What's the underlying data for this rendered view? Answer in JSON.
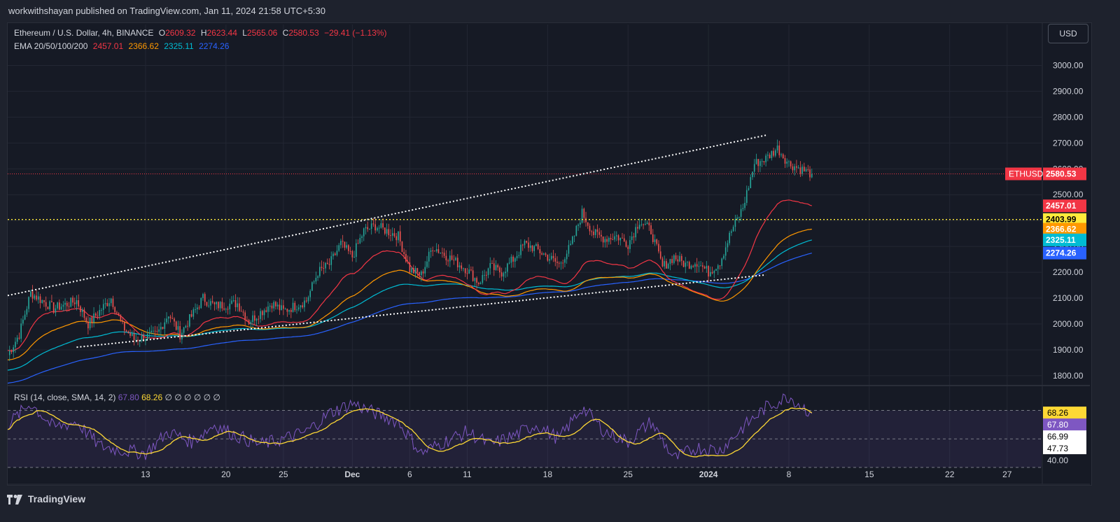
{
  "header": {
    "publish_line": "workwithshayan published on TradingView.com, Jan 11, 2024 21:58 UTC+5:30"
  },
  "legend": {
    "symbol": "Ethereum / U.S. Dollar, 4h, BINANCE",
    "open_label": "O",
    "open": "2609.32",
    "high_label": "H",
    "high": "2623.44",
    "low_label": "L",
    "low": "2565.06",
    "close_label": "C",
    "close": "2580.53",
    "change": "−29.41 (−1.13%)",
    "ema_label": "EMA 20/50/100/200",
    "ema20": "2457.01",
    "ema50": "2366.62",
    "ema100": "2325.11",
    "ema200": "2274.26"
  },
  "currency_button": "USD",
  "rsi_legend": {
    "label": "RSI (14, close, SMA, 14, 2)",
    "rsi": "67.80",
    "sma": "68.26",
    "extras": "∅ ∅ ∅ ∅ ∅ ∅"
  },
  "footer": {
    "brand": "TradingView"
  },
  "colors": {
    "background": "#161a25",
    "grid": "#232733",
    "text": "#d1d4dc",
    "up": "#26a69a",
    "down": "#ef5350",
    "ema20": "#f23645",
    "ema50": "#ff9800",
    "ema100": "#00bcd4",
    "ema200": "#2962ff",
    "rsi": "#7e57c2",
    "rsi_sma": "#fdd835",
    "level_line": "#ffeb3b",
    "price_line": "#f23645"
  },
  "chart_data": [
    {
      "type": "candlestick",
      "title": "Ethereum / U.S. Dollar, 4h, BINANCE",
      "y_axis_side": "right",
      "ylim": [
        1770,
        3050
      ],
      "y_ticks": [
        1800,
        1900,
        2000,
        2100,
        2200,
        2300,
        2400,
        2500,
        2600,
        2700,
        2800,
        2900,
        3000
      ],
      "y_tick_labels": [
        "1800.00",
        "1900.00",
        "2000.00",
        "2100.00",
        "2200.00",
        "2300.00",
        "2400.00",
        "2500.00",
        "2600.00",
        "2700.00",
        "2800.00",
        "2900.00",
        "3000.00"
      ],
      "x_tick_labels": [
        "13",
        "20",
        "25",
        "Dec",
        "6",
        "11",
        "18",
        "25",
        "2024",
        "8",
        "15",
        "22",
        "27"
      ],
      "x_tick_days": [
        12,
        19,
        24,
        30,
        35,
        40,
        47,
        54,
        61,
        68,
        75,
        82,
        87
      ],
      "x_range_days": [
        0,
        90
      ],
      "last_bar_day": 70,
      "ohlc_keypoints": [
        {
          "day": 0,
          "close": 1880
        },
        {
          "day": 1,
          "close": 1960
        },
        {
          "day": 2,
          "close": 2120
        },
        {
          "day": 4,
          "close": 2060
        },
        {
          "day": 6,
          "close": 2090
        },
        {
          "day": 7,
          "close": 2000
        },
        {
          "day": 9,
          "close": 2100
        },
        {
          "day": 10,
          "close": 1990
        },
        {
          "day": 11,
          "close": 1940
        },
        {
          "day": 13,
          "close": 1960
        },
        {
          "day": 14,
          "close": 2040
        },
        {
          "day": 15,
          "close": 1960
        },
        {
          "day": 17,
          "close": 2100
        },
        {
          "day": 18,
          "close": 2070
        },
        {
          "day": 20,
          "close": 2080
        },
        {
          "day": 21,
          "close": 2010
        },
        {
          "day": 23,
          "close": 2080
        },
        {
          "day": 24,
          "close": 2050
        },
        {
          "day": 26,
          "close": 2090
        },
        {
          "day": 27,
          "close": 2200
        },
        {
          "day": 28,
          "close": 2230
        },
        {
          "day": 29,
          "close": 2310
        },
        {
          "day": 30,
          "close": 2260
        },
        {
          "day": 31,
          "close": 2360
        },
        {
          "day": 32,
          "close": 2380
        },
        {
          "day": 33,
          "close": 2360
        },
        {
          "day": 34,
          "close": 2340
        },
        {
          "day": 35,
          "close": 2210
        },
        {
          "day": 36,
          "close": 2190
        },
        {
          "day": 37,
          "close": 2300
        },
        {
          "day": 38,
          "close": 2270
        },
        {
          "day": 39,
          "close": 2240
        },
        {
          "day": 40,
          "close": 2210
        },
        {
          "day": 41,
          "close": 2160
        },
        {
          "day": 42,
          "close": 2220
        },
        {
          "day": 43,
          "close": 2200
        },
        {
          "day": 44,
          "close": 2250
        },
        {
          "day": 45,
          "close": 2310
        },
        {
          "day": 46,
          "close": 2290
        },
        {
          "day": 47,
          "close": 2260
        },
        {
          "day": 48,
          "close": 2230
        },
        {
          "day": 49,
          "close": 2300
        },
        {
          "day": 50,
          "close": 2430
        },
        {
          "day": 51,
          "close": 2350
        },
        {
          "day": 52,
          "close": 2330
        },
        {
          "day": 53,
          "close": 2340
        },
        {
          "day": 54,
          "close": 2310
        },
        {
          "day": 55,
          "close": 2400
        },
        {
          "day": 56,
          "close": 2360
        },
        {
          "day": 57,
          "close": 2220
        },
        {
          "day": 58,
          "close": 2260
        },
        {
          "day": 59,
          "close": 2230
        },
        {
          "day": 60,
          "close": 2240
        },
        {
          "day": 61,
          "close": 2200
        },
        {
          "day": 62,
          "close": 2240
        },
        {
          "day": 63,
          "close": 2360
        },
        {
          "day": 64,
          "close": 2450
        },
        {
          "day": 65,
          "close": 2620
        },
        {
          "day": 66,
          "close": 2640
        },
        {
          "day": 67,
          "close": 2680
        },
        {
          "day": 68,
          "close": 2620
        },
        {
          "day": 69,
          "close": 2600
        },
        {
          "day": 70,
          "close": 2580.53
        }
      ],
      "ema_last": {
        "ema20": 2457.01,
        "ema50": 2366.62,
        "ema100": 2325.11,
        "ema200": 2274.26
      },
      "ema_start": {
        "ema20": 1900,
        "ema50": 1860,
        "ema100": 1820,
        "ema200": 1770
      },
      "horizontal_level": 2403.99,
      "current_price": 2580.53,
      "trendlines": [
        {
          "style": "dotted",
          "from": {
            "day": 0,
            "price": 2110
          },
          "to": {
            "day": 66,
            "price": 2730
          }
        },
        {
          "style": "dotted",
          "from": {
            "day": 6,
            "price": 1910
          },
          "to": {
            "day": 66,
            "price": 2190
          }
        }
      ],
      "price_labels": [
        {
          "text": "ETHUSD",
          "value": "2580.53",
          "price": 2580.53,
          "color": "#f23645"
        },
        {
          "text": "",
          "value": "2457.01",
          "price": 2457.01,
          "color": "#f23645"
        },
        {
          "text": "",
          "value": "2403.99",
          "price": 2403.99,
          "color": "#ffeb3b"
        },
        {
          "text": "",
          "value": "2366.62",
          "price": 2366.62,
          "color": "#ff9800"
        },
        {
          "text": "",
          "value": "2325.11",
          "price": 2325.11,
          "color": "#00bcd4"
        },
        {
          "text": "",
          "value": "2274.26",
          "price": 2274.26,
          "color": "#2962ff"
        }
      ]
    },
    {
      "type": "line",
      "title": "RSI (14, close, SMA, 14, 2)",
      "ylim": [
        30,
        85
      ],
      "band": [
        30,
        70
      ],
      "levels": [
        30,
        50,
        70
      ],
      "y_tick_labels_visible": [
        "40.00"
      ],
      "series": [
        {
          "name": "RSI",
          "color": "#7e57c2",
          "last": 67.8
        },
        {
          "name": "SMA",
          "color": "#fdd835",
          "last": 68.26
        }
      ],
      "rsi_keypoints": [
        {
          "day": 0,
          "value": 60
        },
        {
          "day": 2,
          "value": 75
        },
        {
          "day": 4,
          "value": 58
        },
        {
          "day": 6,
          "value": 62
        },
        {
          "day": 8,
          "value": 45
        },
        {
          "day": 10,
          "value": 42
        },
        {
          "day": 12,
          "value": 40
        },
        {
          "day": 14,
          "value": 55
        },
        {
          "day": 16,
          "value": 48
        },
        {
          "day": 18,
          "value": 60
        },
        {
          "day": 20,
          "value": 52
        },
        {
          "day": 22,
          "value": 46
        },
        {
          "day": 24,
          "value": 50
        },
        {
          "day": 26,
          "value": 55
        },
        {
          "day": 28,
          "value": 68
        },
        {
          "day": 30,
          "value": 75
        },
        {
          "day": 32,
          "value": 68
        },
        {
          "day": 34,
          "value": 62
        },
        {
          "day": 36,
          "value": 40
        },
        {
          "day": 38,
          "value": 48
        },
        {
          "day": 40,
          "value": 55
        },
        {
          "day": 42,
          "value": 46
        },
        {
          "day": 44,
          "value": 52
        },
        {
          "day": 46,
          "value": 60
        },
        {
          "day": 48,
          "value": 50
        },
        {
          "day": 50,
          "value": 72
        },
        {
          "day": 52,
          "value": 55
        },
        {
          "day": 54,
          "value": 48
        },
        {
          "day": 56,
          "value": 62
        },
        {
          "day": 58,
          "value": 36
        },
        {
          "day": 60,
          "value": 44
        },
        {
          "day": 62,
          "value": 42
        },
        {
          "day": 64,
          "value": 58
        },
        {
          "day": 66,
          "value": 72
        },
        {
          "day": 68,
          "value": 80
        },
        {
          "day": 70,
          "value": 67.8
        }
      ],
      "axis_labels": [
        {
          "value": "68.26",
          "level": 68.26,
          "color": "#fdd835"
        },
        {
          "value": "67.80",
          "level": 67.8,
          "color": "#7e57c2"
        },
        {
          "value": "66.99",
          "level": 61,
          "color": "#ffffff"
        },
        {
          "value": "47.73",
          "level": 52,
          "color": "#ffffff"
        },
        {
          "value": "40.00",
          "level": 40,
          "color": "#d1d4dc"
        }
      ]
    }
  ]
}
